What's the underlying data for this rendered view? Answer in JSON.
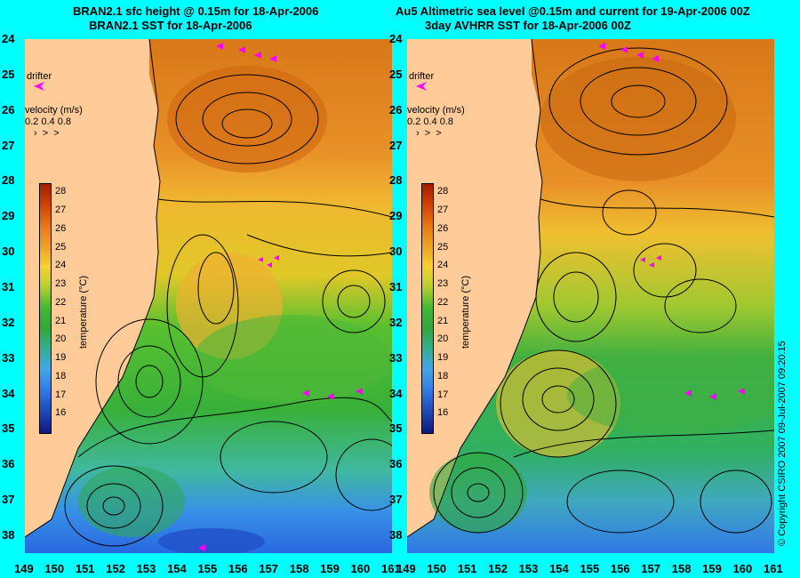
{
  "left_panel": {
    "title_line1": "BRAN2.1 sfc height @ 0.15m for 18-Apr-2006",
    "title_line2": "BRAN2.1 SST for 18-Apr-2006"
  },
  "right_panel": {
    "title_line1": "Au5 Altimetric sea level  @0.15m and current for 19-Apr-2006 00Z",
    "title_line2": "3day AVHRR SST for 18-Apr-2006 00Z"
  },
  "map_axes": {
    "lat_labels": [
      "24",
      "25",
      "26",
      "27",
      "28",
      "29",
      "30",
      "31",
      "32",
      "33",
      "34",
      "35",
      "36",
      "37",
      "38"
    ],
    "lon_labels": [
      "149",
      "150",
      "151",
      "152",
      "153",
      "154",
      "155",
      "156",
      "157",
      "158",
      "159",
      "160",
      "161"
    ],
    "lon_range": [
      149,
      161
    ],
    "lat_range": [
      -38.5,
      -24
    ]
  },
  "legend": {
    "drifter_label": "drifter",
    "velocity_label": "velocity (m/s)",
    "velocity_values": "0.2 0.4 0.8"
  },
  "colorbar": {
    "label": "temperature (°C)",
    "ticks": [
      "28",
      "27",
      "26",
      "25",
      "24",
      "23",
      "22",
      "21",
      "20",
      "19",
      "18",
      "17",
      "16"
    ],
    "range": [
      15,
      28.5
    ]
  },
  "copyright": "© Copyright CSIRO 2007  09-Jul-2007 09:20:15",
  "colors": {
    "background": "#00ffff",
    "land": "#ffcc99",
    "drifter": "#ff00ff",
    "warm": "#e07818",
    "mid": "#f0c828",
    "cool": "#30b030",
    "cold": "#3088e8"
  }
}
